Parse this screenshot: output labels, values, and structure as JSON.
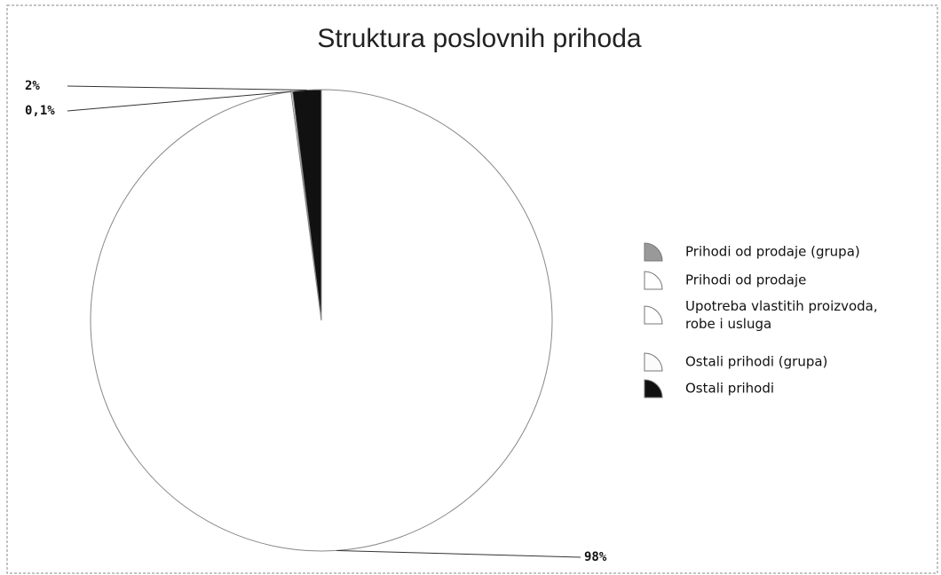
{
  "chart_data": {
    "type": "pie",
    "title": "Struktura poslovnih prihoda",
    "categories": [
      "Prihodi od prodaje (grupa)",
      "Prihodi od prodaje",
      "Upotreba vlastitih proizvoda, robe i usluga",
      "Ostali prihodi (grupa)",
      "Ostali prihodi"
    ],
    "values": [
      null,
      98,
      0.1,
      null,
      2
    ],
    "value_labels": [
      null,
      "98%",
      "0,1%",
      null,
      "2%"
    ],
    "colors": [
      "#999999",
      "#ffffff",
      "#ffffff",
      "#fbfbfb",
      "#111111"
    ],
    "legend": "right"
  }
}
